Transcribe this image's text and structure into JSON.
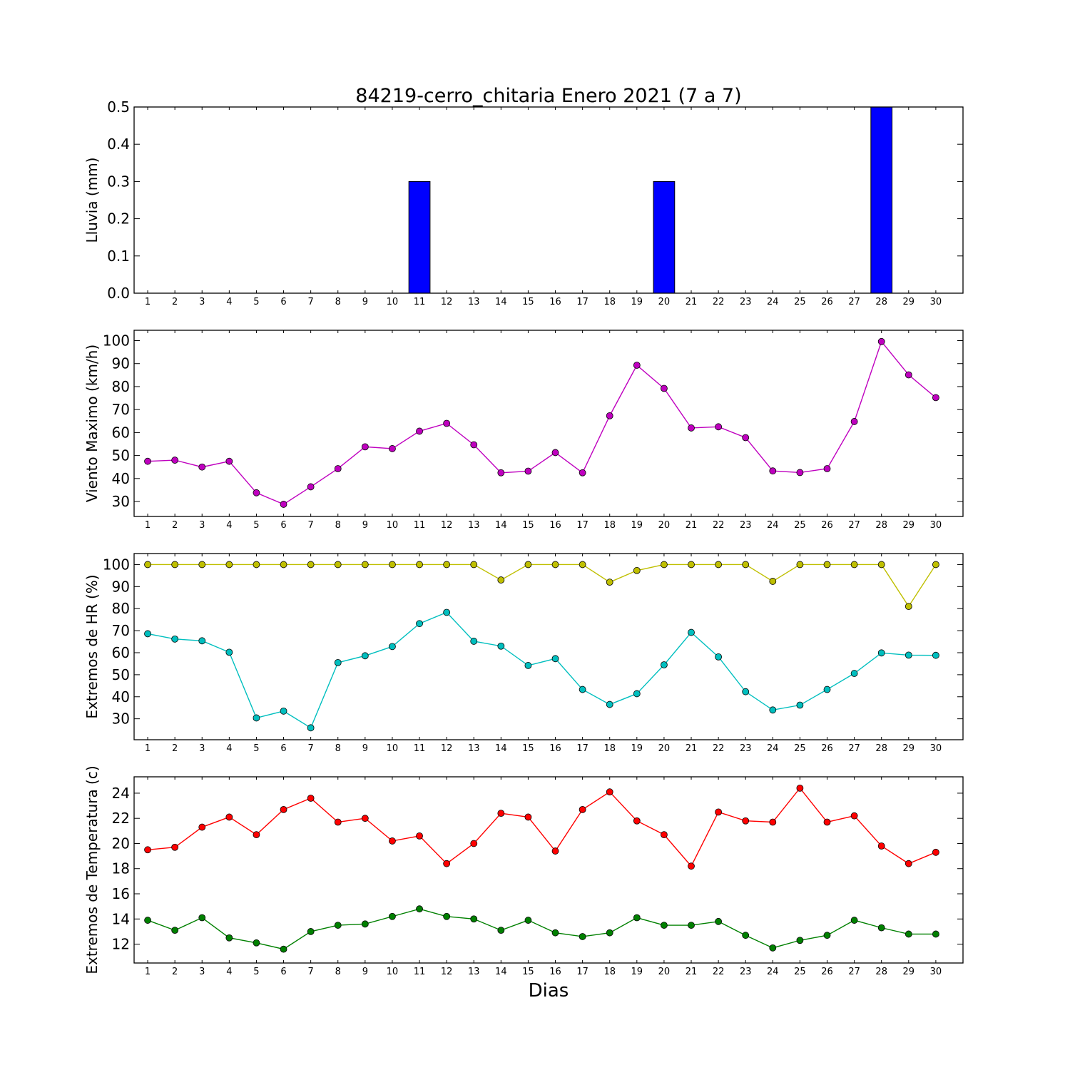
{
  "figure": {
    "title": "84219-cerro_chitaria Enero 2021  (7 a 7)",
    "xlabel": "Dias"
  },
  "chart_data": [
    {
      "type": "bar",
      "ylabel": "Lluvia (mm)",
      "categories": [
        "1",
        "2",
        "3",
        "4",
        "5",
        "6",
        "7",
        "8",
        "9",
        "10",
        "11",
        "12",
        "13",
        "14",
        "15",
        "16",
        "17",
        "18",
        "19",
        "20",
        "21",
        "22",
        "23",
        "24",
        "25",
        "26",
        "27",
        "28",
        "29",
        "30"
      ],
      "ylim": [
        0,
        0.5
      ],
      "yticks": [
        "0.0",
        "0.1",
        "0.2",
        "0.3",
        "0.4",
        "0.5"
      ],
      "grid": false,
      "series": [
        {
          "color": "#0000ff",
          "values": [
            0,
            0,
            0,
            0,
            0,
            0,
            0,
            0,
            0,
            0,
            0.3,
            0,
            0,
            0,
            0,
            0,
            0,
            0,
            0,
            0.3,
            0,
            0,
            0,
            0,
            0,
            0,
            0,
            0.5,
            0,
            0
          ]
        }
      ]
    },
    {
      "type": "line",
      "ylabel": "Viento Maximo (km/h)",
      "categories": [
        "1",
        "2",
        "3",
        "4",
        "5",
        "6",
        "7",
        "8",
        "9",
        "10",
        "11",
        "12",
        "13",
        "14",
        "15",
        "16",
        "17",
        "18",
        "19",
        "20",
        "21",
        "22",
        "23",
        "24",
        "25",
        "26",
        "27",
        "28",
        "29",
        "30"
      ],
      "ylim": [
        23.5,
        104.5
      ],
      "yticks": [
        "30",
        "40",
        "50",
        "60",
        "70",
        "80",
        "90",
        "100"
      ],
      "grid": false,
      "series": [
        {
          "color": "#bf00bf",
          "values": [
            47.5,
            48,
            45,
            47.5,
            33.8,
            28.8,
            36.4,
            44.3,
            53.8,
            53,
            60.6,
            64,
            54.7,
            42.5,
            43.2,
            51.3,
            42.5,
            67.3,
            89.3,
            79.2,
            62,
            62.5,
            57.8,
            43.3,
            42.6,
            44.3,
            64.8,
            99.6,
            85.1,
            75.2
          ]
        }
      ]
    },
    {
      "type": "line",
      "ylabel": "Extremos de HR (%)",
      "categories": [
        "1",
        "2",
        "3",
        "4",
        "5",
        "6",
        "7",
        "8",
        "9",
        "10",
        "11",
        "12",
        "13",
        "14",
        "15",
        "16",
        "17",
        "18",
        "19",
        "20",
        "21",
        "22",
        "23",
        "24",
        "25",
        "26",
        "27",
        "28",
        "29",
        "30"
      ],
      "ylim": [
        20.5,
        105
      ],
      "yticks": [
        "30",
        "40",
        "50",
        "60",
        "70",
        "80",
        "90",
        "100"
      ],
      "grid": false,
      "series": [
        {
          "color": "#bfbf00",
          "values": [
            100,
            100,
            100,
            100,
            100,
            100,
            100,
            100,
            100,
            100,
            100,
            100,
            100,
            93,
            100,
            100,
            100,
            92,
            97.3,
            100,
            100,
            100,
            100,
            92.4,
            100,
            100,
            100,
            100,
            81,
            100
          ]
        },
        {
          "color": "#00bfbf",
          "values": [
            68.6,
            66.2,
            65.4,
            60.2,
            30.4,
            33.5,
            25.9,
            55.5,
            58.6,
            62.8,
            73.2,
            78.3,
            65.2,
            63,
            54.2,
            57.3,
            43.3,
            36.5,
            41.4,
            54.5,
            69.2,
            58.1,
            42.3,
            34,
            36.2,
            43.3,
            50.6,
            59.9,
            58.9,
            58.8
          ]
        }
      ]
    },
    {
      "type": "line",
      "ylabel": "Extremos de Temperatura (c)",
      "categories": [
        "1",
        "2",
        "3",
        "4",
        "5",
        "6",
        "7",
        "8",
        "9",
        "10",
        "11",
        "12",
        "13",
        "14",
        "15",
        "16",
        "17",
        "18",
        "19",
        "20",
        "21",
        "22",
        "23",
        "24",
        "25",
        "26",
        "27",
        "28",
        "29",
        "30"
      ],
      "ylim": [
        10.5,
        25.3
      ],
      "yticks": [
        "12",
        "14",
        "16",
        "18",
        "20",
        "22",
        "24"
      ],
      "grid": false,
      "series": [
        {
          "color": "#ff0000",
          "values": [
            19.5,
            19.7,
            21.3,
            22.1,
            20.7,
            22.7,
            23.6,
            21.7,
            22,
            20.2,
            20.6,
            18.4,
            20,
            22.4,
            22.1,
            19.4,
            22.7,
            24.1,
            21.8,
            20.7,
            18.2,
            22.5,
            21.8,
            21.7,
            24.4,
            21.7,
            22.2,
            19.8,
            18.4,
            19.3
          ]
        },
        {
          "color": "#008000",
          "values": [
            13.9,
            13.1,
            14.1,
            12.5,
            12.1,
            11.6,
            13,
            13.5,
            13.6,
            14.2,
            14.8,
            14.2,
            14,
            13.1,
            13.9,
            12.9,
            12.6,
            12.9,
            14.1,
            13.5,
            13.5,
            13.8,
            12.7,
            11.7,
            12.3,
            12.7,
            13.9,
            13.3,
            12.8,
            12.8
          ]
        }
      ]
    }
  ]
}
